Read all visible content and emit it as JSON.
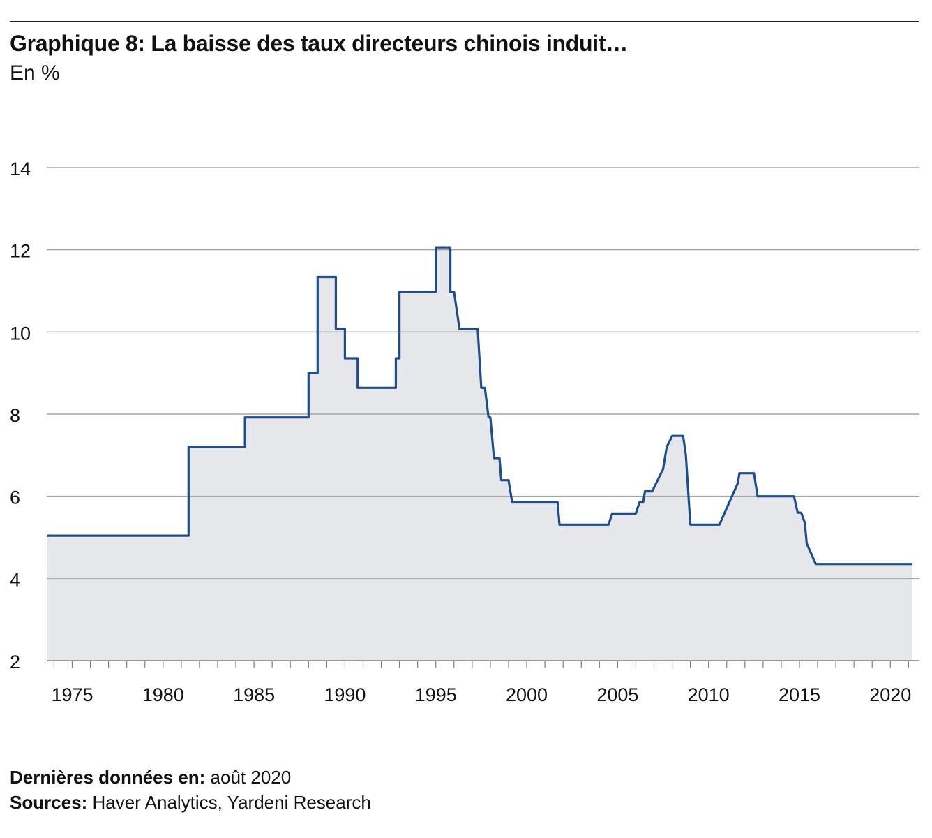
{
  "header": {
    "title": "Graphique 8: La baisse des taux directeurs chinois induit…",
    "subtitle": "En %"
  },
  "footer": {
    "last_data_label": "Dernières données en:",
    "last_data_value": "août 2020",
    "sources_label": "Sources:",
    "sources_value": "Haver Analytics, Yardeni Research"
  },
  "colors": {
    "line": "#1f4e8c",
    "area_fill": "#e6e7ea",
    "grid": "#a6a6a6",
    "axis": "#7f7f7f"
  },
  "chart_data": {
    "type": "area",
    "step": true,
    "xlim": [
      1973.6,
      2021.6
    ],
    "ylim": [
      2,
      14
    ],
    "yticks": [
      2,
      4,
      6,
      8,
      10,
      12,
      14
    ],
    "xticks": [
      1975,
      1980,
      1985,
      1990,
      1995,
      2000,
      2005,
      2010,
      2015,
      2020
    ],
    "grid": "horizontal",
    "series": [
      {
        "values": [
          [
            1973.6,
            5.04
          ],
          [
            1981.4,
            5.04
          ],
          [
            1981.4,
            7.2
          ],
          [
            1984.5,
            7.2
          ],
          [
            1984.5,
            7.92
          ],
          [
            1988.0,
            7.92
          ],
          [
            1988.0,
            9.0
          ],
          [
            1988.5,
            9.0
          ],
          [
            1988.5,
            11.34
          ],
          [
            1989.5,
            11.34
          ],
          [
            1989.5,
            10.08
          ],
          [
            1990.0,
            10.08
          ],
          [
            1990.0,
            9.36
          ],
          [
            1990.7,
            9.36
          ],
          [
            1990.7,
            8.64
          ],
          [
            1992.8,
            8.64
          ],
          [
            1992.8,
            9.36
          ],
          [
            1993.0,
            9.36
          ],
          [
            1993.0,
            10.98
          ],
          [
            1995.0,
            10.98
          ],
          [
            1995.0,
            12.06
          ],
          [
            1995.8,
            12.06
          ],
          [
            1995.8,
            10.98
          ],
          [
            1996.0,
            10.98
          ],
          [
            1996.3,
            10.08
          ],
          [
            1997.3,
            10.08
          ],
          [
            1997.5,
            8.64
          ],
          [
            1997.7,
            8.64
          ],
          [
            1997.9,
            7.92
          ],
          [
            1998.0,
            7.92
          ],
          [
            1998.2,
            6.93
          ],
          [
            1998.5,
            6.93
          ],
          [
            1998.6,
            6.39
          ],
          [
            1999.0,
            6.39
          ],
          [
            1999.2,
            5.85
          ],
          [
            2001.7,
            5.85
          ],
          [
            2001.8,
            5.31
          ],
          [
            2004.5,
            5.31
          ],
          [
            2004.7,
            5.58
          ],
          [
            2006.0,
            5.58
          ],
          [
            2006.2,
            5.85
          ],
          [
            2006.4,
            5.85
          ],
          [
            2006.5,
            6.12
          ],
          [
            2006.9,
            6.12
          ],
          [
            2007.2,
            6.39
          ],
          [
            2007.5,
            6.66
          ],
          [
            2007.7,
            7.2
          ],
          [
            2008.0,
            7.47
          ],
          [
            2008.6,
            7.47
          ],
          [
            2008.75,
            7.02
          ],
          [
            2009.0,
            5.31
          ],
          [
            2010.6,
            5.31
          ],
          [
            2011.1,
            5.81
          ],
          [
            2011.6,
            6.31
          ],
          [
            2011.7,
            6.56
          ],
          [
            2012.5,
            6.56
          ],
          [
            2012.7,
            6.0
          ],
          [
            2014.7,
            6.0
          ],
          [
            2014.9,
            5.6
          ],
          [
            2015.1,
            5.6
          ],
          [
            2015.3,
            5.35
          ],
          [
            2015.4,
            4.85
          ],
          [
            2015.9,
            4.35
          ],
          [
            2021.5,
            4.35
          ]
        ]
      }
    ]
  }
}
